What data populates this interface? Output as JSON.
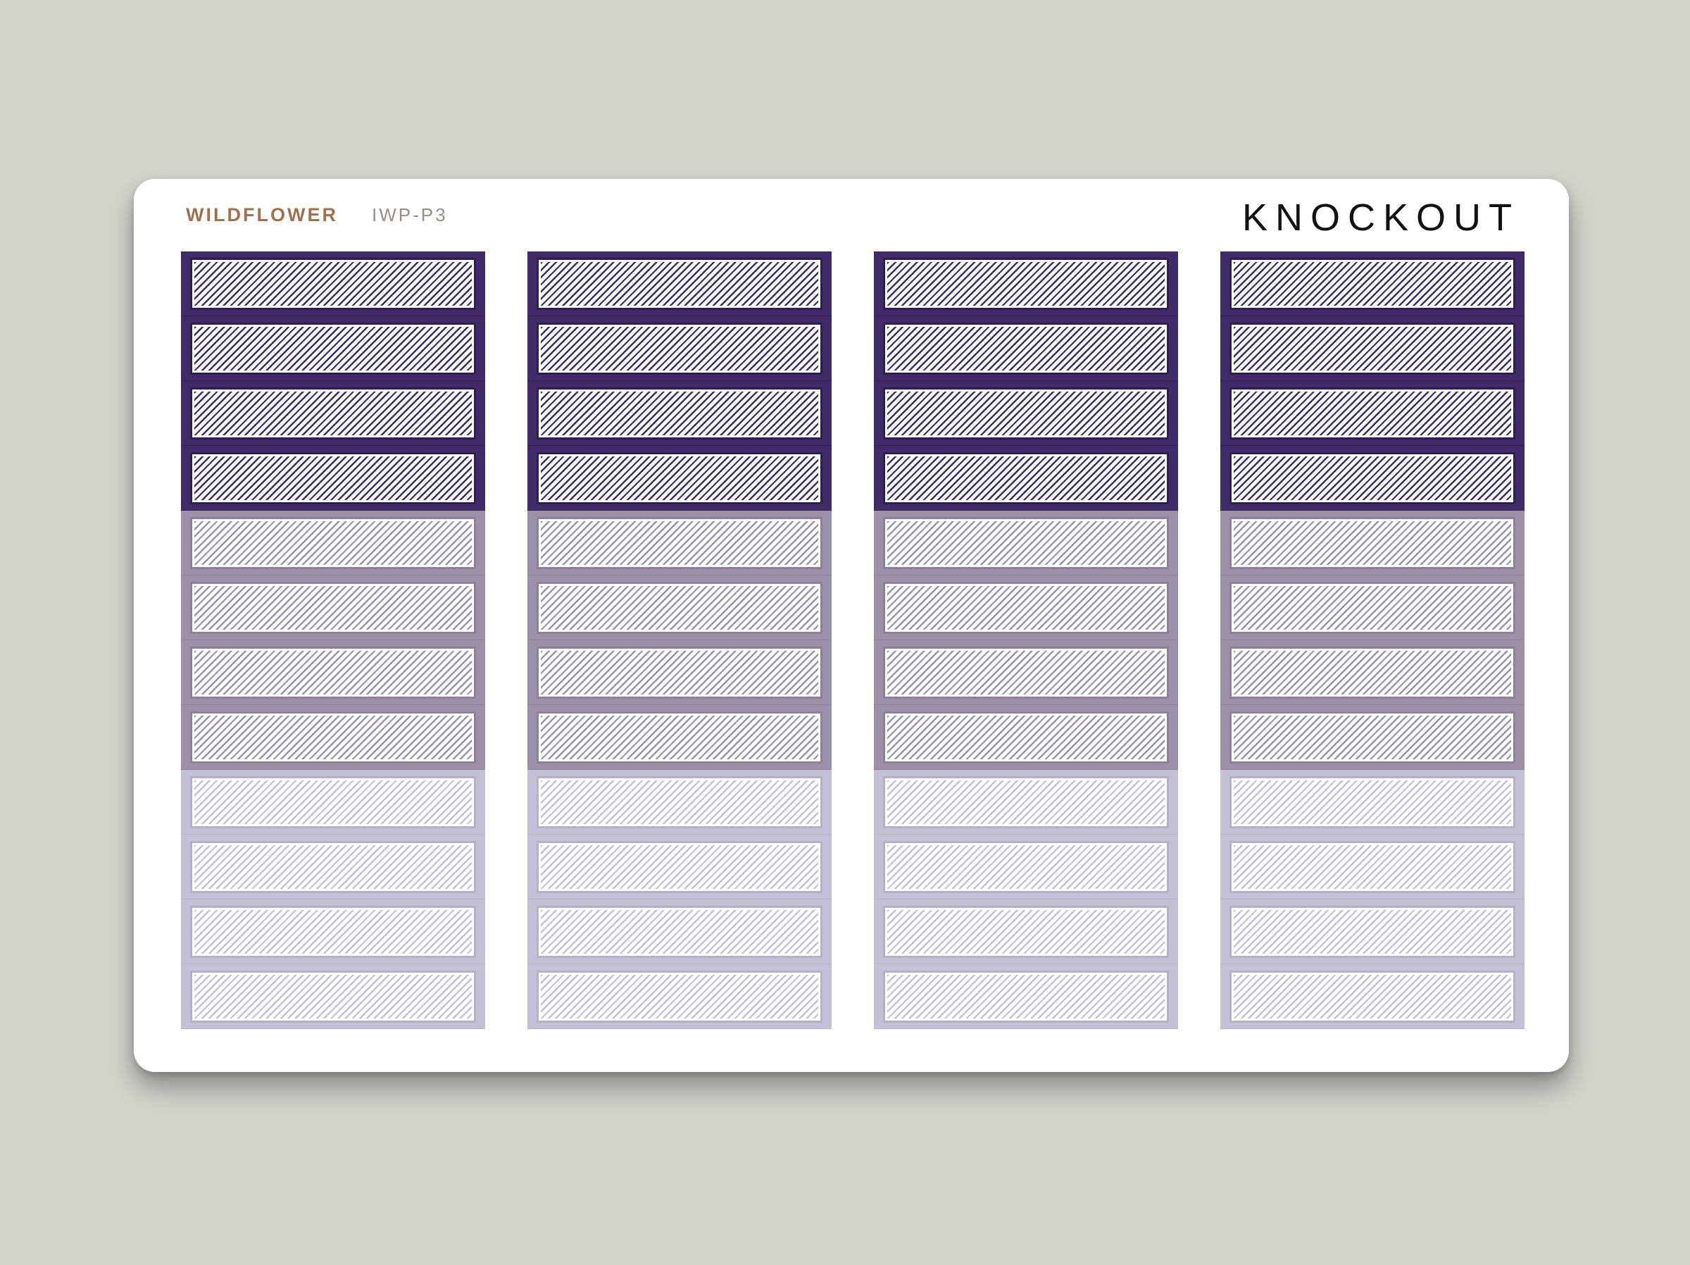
{
  "brand": {
    "name": "WILDFLOWER",
    "code": "IWP-P3",
    "title": "KNOCKOUT",
    "brand_color": "#a0714f",
    "code_color": "#9a8f88",
    "title_color": "#111111"
  },
  "background_color": "#d6d3cd",
  "sheet_color": "#ffffff",
  "columns": 4,
  "rows": 12,
  "row_colors": [
    "#3f2b67",
    "#3f2b67",
    "#3f2b67",
    "#3f2b67",
    "#9d90a9",
    "#9d90a9",
    "#9d90a9",
    "#9d90a9",
    "#c3c1d6",
    "#c3c1d6",
    "#c3c1d6",
    "#c3c1d6"
  ],
  "row_border_colors": [
    "#2e1f4f",
    "#2e1f4f",
    "#2e1f4f",
    "#2e1f4f",
    "#8d8099",
    "#8d8099",
    "#8d8099",
    "#8d8099",
    "#b4b2c9",
    "#b4b2c9",
    "#b4b2c9",
    "#b4b2c9"
  ]
}
